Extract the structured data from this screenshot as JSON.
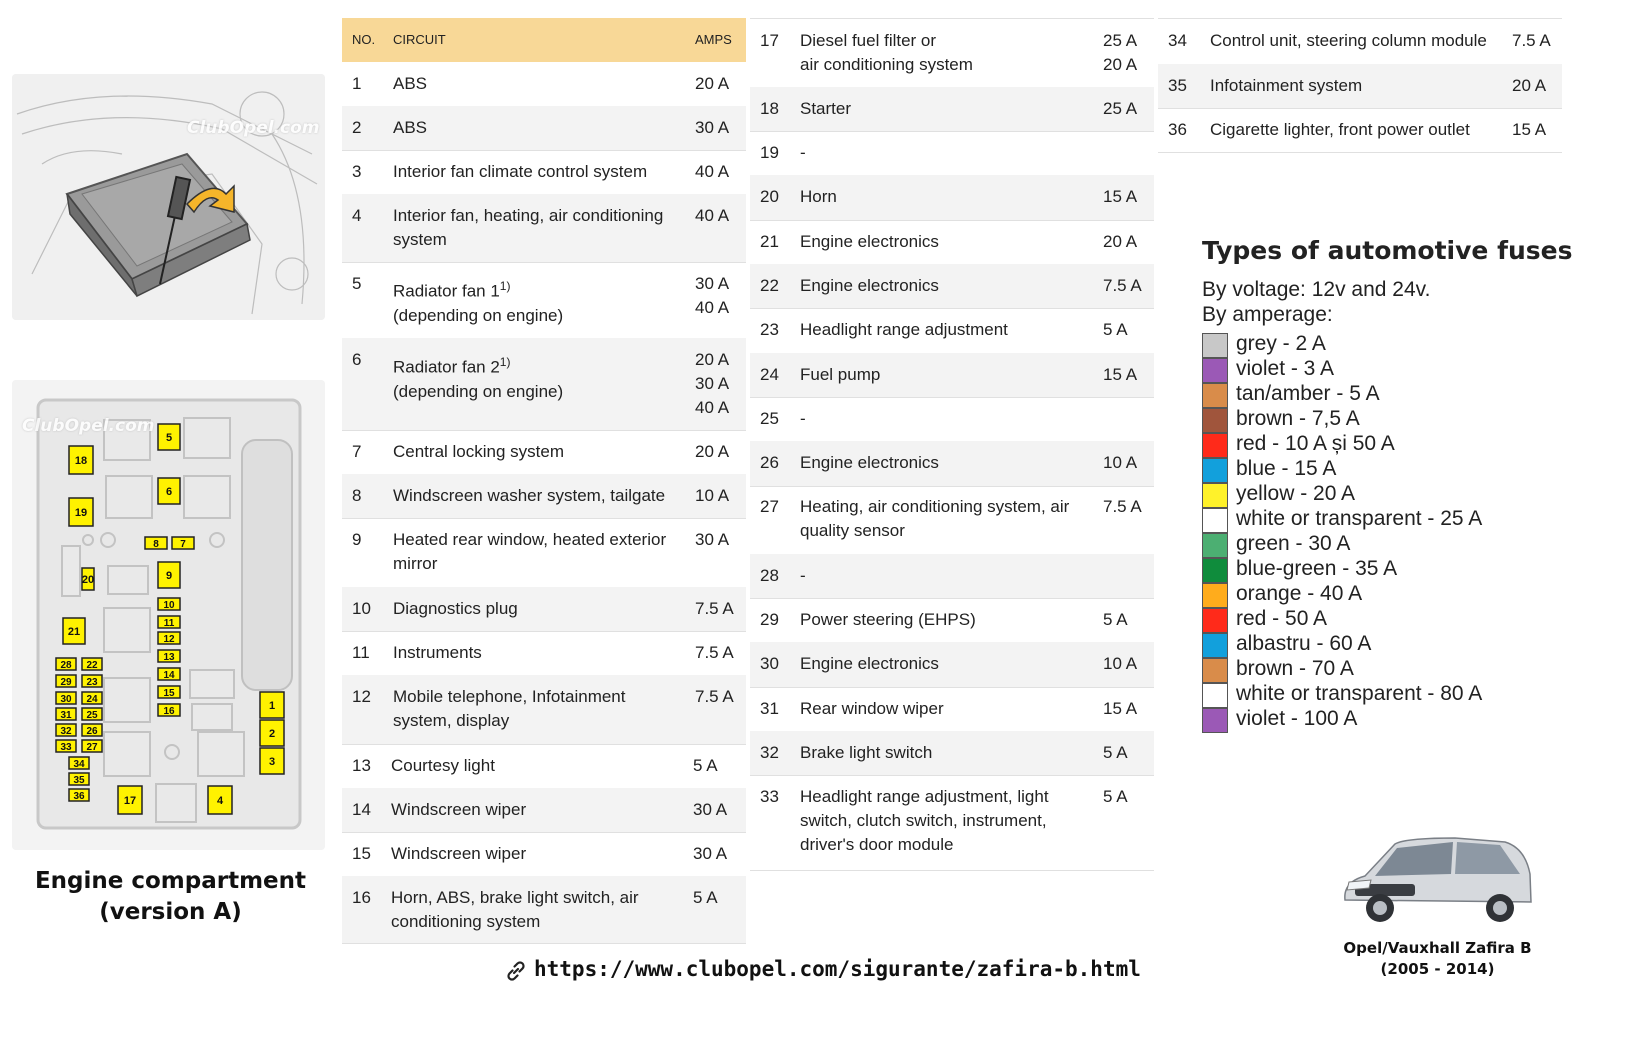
{
  "watermark": "ClubOpel.com",
  "caption": {
    "line1": "Engine compartment",
    "line2": "(version A)"
  },
  "table_header": {
    "no": "NO.",
    "circuit": "CIRCUIT",
    "amps": "AMPS"
  },
  "fuses": [
    {
      "no": "1",
      "circuit": "ABS",
      "amps": "20 A"
    },
    {
      "no": "2",
      "circuit": "ABS",
      "amps": "30 A"
    },
    {
      "no": "3",
      "circuit": "Interior fan climate control system",
      "amps": "40 A"
    },
    {
      "no": "4",
      "circuit": "Interior fan, heating, air conditioning\nsystem",
      "amps": "40 A"
    },
    {
      "no": "5",
      "circuit": "Radiator fan 1",
      "sup": "1)",
      "circuit2": "(depending on engine)",
      "amps": "30 A\n40 A"
    },
    {
      "no": "6",
      "circuit": "Radiator fan 2",
      "sup": "1)",
      "circuit2": "(depending on engine)",
      "amps": "20 A\n30 A\n40 A"
    },
    {
      "no": "7",
      "circuit": "Central locking system",
      "amps": "20 A"
    },
    {
      "no": "8",
      "circuit": "Windscreen washer system, tailgate",
      "amps": "10 A"
    },
    {
      "no": "9",
      "circuit": "Heated rear window, heated exterior\nmirror",
      "amps": "30 A"
    },
    {
      "no": "10",
      "circuit": "Diagnostics plug",
      "amps": "7.5 A"
    },
    {
      "no": "11",
      "circuit": "Instruments",
      "amps": "7.5 A"
    },
    {
      "no": "12",
      "circuit": "Mobile telephone, Infotainment\nsystem, display",
      "amps": "7.5 A"
    },
    {
      "no": "13",
      "circuit": "Courtesy light",
      "amps": "5 A"
    },
    {
      "no": "14",
      "circuit": "Windscreen wiper",
      "amps": "30 A"
    },
    {
      "no": "15",
      "circuit": "Windscreen wiper",
      "amps": "30 A"
    },
    {
      "no": "16",
      "circuit": "Horn, ABS, brake light switch, air\nconditioning system",
      "amps": "5 A"
    },
    {
      "no": "17",
      "circuit": "Diesel fuel filter or\nair conditioning system",
      "amps": "25 A\n20 A"
    },
    {
      "no": "18",
      "circuit": "Starter",
      "amps": "25 A"
    },
    {
      "no": "19",
      "circuit": "-",
      "amps": ""
    },
    {
      "no": "20",
      "circuit": "Horn",
      "amps": "15 A"
    },
    {
      "no": "21",
      "circuit": "Engine electronics",
      "amps": "20 A"
    },
    {
      "no": "22",
      "circuit": "Engine electronics",
      "amps": "7.5 A"
    },
    {
      "no": "23",
      "circuit": "Headlight range adjustment",
      "amps": "5 A"
    },
    {
      "no": "24",
      "circuit": "Fuel pump",
      "amps": "15 A"
    },
    {
      "no": "25",
      "circuit": "-",
      "amps": ""
    },
    {
      "no": "26",
      "circuit": "Engine electronics",
      "amps": "10 A"
    },
    {
      "no": "27",
      "circuit": "Heating, air conditioning system, air\nquality sensor",
      "amps": "7.5 A"
    },
    {
      "no": "28",
      "circuit": "-",
      "amps": ""
    },
    {
      "no": "29",
      "circuit": "Power steering (EHPS)",
      "amps": "5 A"
    },
    {
      "no": "30",
      "circuit": "Engine electronics",
      "amps": "10 A"
    },
    {
      "no": "31",
      "circuit": "Rear window wiper",
      "amps": "15 A"
    },
    {
      "no": "32",
      "circuit": "Brake light switch",
      "amps": "5 A"
    },
    {
      "no": "33",
      "circuit": "Headlight range adjustment, light\nswitch, clutch switch, instrument,\ndriver's door module",
      "amps": "5 A"
    },
    {
      "no": "34",
      "circuit": "Control unit, steering column module",
      "amps": "7.5 A"
    },
    {
      "no": "35",
      "circuit": "Infotainment system",
      "amps": "20 A"
    },
    {
      "no": "36",
      "circuit": "Cigarette lighter, front power outlet",
      "amps": "15 A"
    }
  ],
  "types": {
    "title": "Types of automotive fuses",
    "voltage": "By voltage: 12v and 24v.",
    "amperage": "By amperage:",
    "items": [
      {
        "label": "grey - 2 A",
        "color": "#c8c8c8"
      },
      {
        "label": "violet - 3 A",
        "color": "#9b59b6"
      },
      {
        "label": "tan/amber - 5 A",
        "color": "#d98c4a"
      },
      {
        "label": "brown - 7,5 A",
        "color": "#a0553c"
      },
      {
        "label": "red - 10 A și 50 A",
        "color": "#ff2a1a"
      },
      {
        "label": "blue - 15 A",
        "color": "#12a0dc"
      },
      {
        "label": "yellow - 20 A",
        "color": "#fff22a"
      },
      {
        "label": "white or transparent - 25 A",
        "color": "#ffffff"
      },
      {
        "label": "green - 30 A",
        "color": "#4caf72"
      },
      {
        "label": "blue-green - 35 A",
        "color": "#0f8c3c"
      },
      {
        "label": "orange - 40 A",
        "color": "#ffac1c"
      },
      {
        "label": "red - 50 A",
        "color": "#ff2a1a"
      },
      {
        "label": "albastru - 60 A",
        "color": "#12a0dc"
      },
      {
        "label": "brown - 70 A",
        "color": "#d98c4a"
      },
      {
        "label": "white or transparent - 80 A",
        "color": "#ffffff"
      },
      {
        "label": "violet - 100 A",
        "color": "#9b59b6"
      }
    ]
  },
  "url": "https://www.clubopel.com/sigurante/zafira-b.html",
  "car": {
    "line1": "Opel/Vauxhall Zafira B",
    "line2": "(2005 - 2014)"
  },
  "diagram_labels": [
    "5",
    "6",
    "18",
    "19",
    "8",
    "7",
    "9",
    "20",
    "10",
    "11",
    "12",
    "21",
    "13",
    "14",
    "15",
    "16",
    "28",
    "22",
    "29",
    "23",
    "30",
    "24",
    "31",
    "25",
    "32",
    "26",
    "33",
    "27",
    "34",
    "35",
    "36",
    "1",
    "2",
    "3",
    "17",
    "4"
  ]
}
